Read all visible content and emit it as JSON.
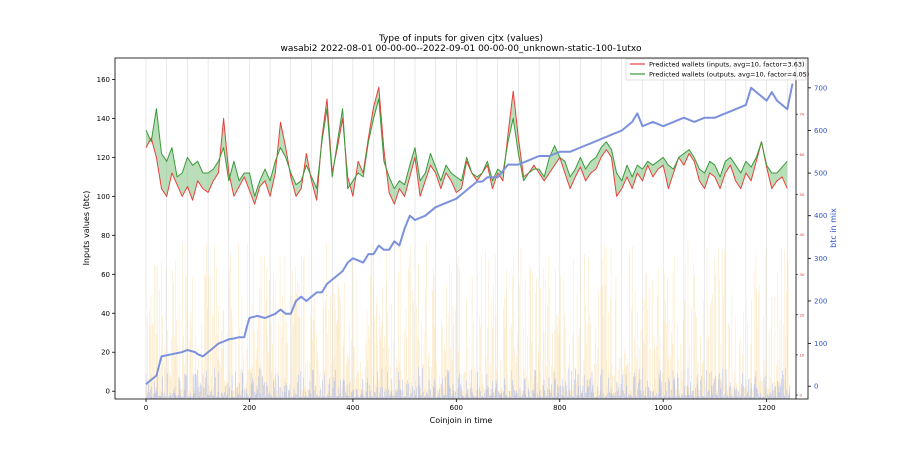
{
  "chart_data": {
    "type": "line",
    "title": "Type of inputs for given cjtx (values)",
    "subtitle": "wasabi2 2022-08-01 00-00-00--2022-09-01 00-00-00_unknown-static-100-1utxo",
    "xlabel": "Coinjoin in time",
    "ylabel": "Inputs values (btc)",
    "y2label": "btc in mix",
    "xlim": [
      -60,
      1280
    ],
    "ylim": [
      -4,
      171
    ],
    "y2lim": [
      -30,
      770
    ],
    "y3lim": [
      -1,
      84
    ],
    "x_ticks": [
      0,
      200,
      400,
      600,
      800,
      1000,
      1200
    ],
    "y_ticks": [
      0,
      20,
      40,
      60,
      80,
      100,
      120,
      140,
      160
    ],
    "y2_ticks": [
      0,
      100,
      200,
      300,
      400,
      500,
      600,
      700
    ],
    "y3_ticks": [
      0,
      10,
      20,
      30,
      40,
      50,
      60,
      70,
      80
    ],
    "legend_position": "top-right",
    "colors": {
      "inputs": "#e8413c",
      "outputs": "#3a9a3a",
      "fill": "#7fc27f",
      "mix": "#7b91dd",
      "right_axis": "#3355cc",
      "right_axis_inner": "#d43a2a",
      "bars_orange": "#f6c667",
      "bars_blue": "#8fa3ea",
      "grid": "#d6d6d6"
    },
    "legend": [
      {
        "label": "Predicted wallets (inputs, avg=10, factor=3.63)",
        "color": "#e8413c"
      },
      {
        "label": "Predicted wallets (outputs, avg=10, factor=4.05)",
        "color": "#3a9a3a"
      }
    ],
    "series_inputs": {
      "x": [
        0,
        10,
        20,
        30,
        40,
        50,
        60,
        70,
        80,
        90,
        100,
        110,
        120,
        130,
        140,
        150,
        160,
        170,
        180,
        190,
        200,
        210,
        220,
        230,
        240,
        250,
        260,
        270,
        280,
        290,
        300,
        310,
        320,
        330,
        340,
        350,
        360,
        370,
        380,
        390,
        400,
        410,
        420,
        430,
        440,
        450,
        460,
        470,
        480,
        490,
        500,
        510,
        520,
        530,
        540,
        550,
        560,
        570,
        580,
        590,
        600,
        610,
        620,
        630,
        640,
        650,
        660,
        670,
        680,
        690,
        700,
        710,
        720,
        730,
        740,
        750,
        760,
        770,
        780,
        790,
        800,
        810,
        820,
        830,
        840,
        850,
        860,
        870,
        880,
        890,
        900,
        910,
        920,
        930,
        940,
        950,
        960,
        970,
        980,
        990,
        1000,
        1010,
        1020,
        1030,
        1040,
        1050,
        1060,
        1070,
        1080,
        1090,
        1100,
        1110,
        1120,
        1130,
        1140,
        1150,
        1160,
        1170,
        1180,
        1190,
        1200,
        1210,
        1220,
        1230,
        1240
      ],
      "y": [
        125,
        130,
        120,
        104,
        100,
        112,
        106,
        100,
        105,
        98,
        108,
        104,
        102,
        108,
        112,
        140,
        112,
        100,
        105,
        110,
        103,
        96,
        105,
        108,
        100,
        112,
        138,
        125,
        110,
        100,
        104,
        122,
        108,
        98,
        130,
        150,
        112,
        125,
        140,
        110,
        100,
        118,
        112,
        130,
        146,
        156,
        124,
        102,
        96,
        104,
        100,
        110,
        120,
        100,
        108,
        116,
        112,
        104,
        112,
        108,
        102,
        104,
        118,
        112,
        108,
        112,
        116,
        104,
        112,
        108,
        132,
        154,
        130,
        110,
        112,
        116,
        112,
        108,
        112,
        116,
        120,
        112,
        104,
        110,
        115,
        108,
        112,
        114,
        120,
        124,
        120,
        100,
        104,
        110,
        104,
        112,
        108,
        116,
        110,
        114,
        116,
        104,
        112,
        120,
        116,
        122,
        118,
        108,
        104,
        112,
        110,
        104,
        112,
        116,
        108,
        104,
        112,
        108,
        118,
        128,
        115,
        104,
        108,
        110,
        104
      ]
    },
    "series_outputs": {
      "x": [
        0,
        10,
        20,
        30,
        40,
        50,
        60,
        70,
        80,
        90,
        100,
        110,
        120,
        130,
        140,
        150,
        160,
        170,
        180,
        190,
        200,
        210,
        220,
        230,
        240,
        250,
        260,
        270,
        280,
        290,
        300,
        310,
        320,
        330,
        340,
        350,
        360,
        370,
        380,
        390,
        400,
        410,
        420,
        430,
        440,
        450,
        460,
        470,
        480,
        490,
        500,
        510,
        520,
        530,
        540,
        550,
        560,
        570,
        580,
        590,
        600,
        610,
        620,
        630,
        640,
        650,
        660,
        670,
        680,
        690,
        700,
        710,
        720,
        730,
        740,
        750,
        760,
        770,
        780,
        790,
        800,
        810,
        820,
        830,
        840,
        850,
        860,
        870,
        880,
        890,
        900,
        910,
        920,
        930,
        940,
        950,
        960,
        970,
        980,
        990,
        1000,
        1010,
        1020,
        1030,
        1040,
        1050,
        1060,
        1070,
        1080,
        1090,
        1100,
        1110,
        1120,
        1130,
        1140,
        1150,
        1160,
        1170,
        1180,
        1190,
        1200,
        1210,
        1220,
        1230,
        1240
      ],
      "y": [
        134,
        128,
        145,
        122,
        118,
        125,
        110,
        112,
        120,
        116,
        118,
        112,
        112,
        114,
        118,
        125,
        108,
        118,
        108,
        112,
        112,
        100,
        108,
        114,
        108,
        118,
        125,
        120,
        112,
        106,
        108,
        116,
        110,
        104,
        128,
        145,
        110,
        128,
        145,
        104,
        108,
        112,
        110,
        128,
        140,
        150,
        118,
        110,
        104,
        108,
        106,
        116,
        125,
        108,
        112,
        122,
        115,
        108,
        116,
        112,
        110,
        108,
        120,
        112,
        110,
        112,
        118,
        108,
        114,
        112,
        128,
        140,
        122,
        108,
        112,
        114,
        114,
        110,
        120,
        126,
        120,
        118,
        110,
        114,
        120,
        114,
        118,
        120,
        125,
        128,
        124,
        112,
        108,
        116,
        110,
        116,
        114,
        118,
        116,
        118,
        120,
        116,
        114,
        120,
        122,
        124,
        120,
        114,
        112,
        118,
        116,
        110,
        118,
        120,
        116,
        112,
        118,
        115,
        120,
        128,
        116,
        112,
        112,
        115,
        118
      ]
    },
    "series_mix": {
      "label": "btc in mix",
      "x": [
        0,
        20,
        30,
        50,
        70,
        80,
        95,
        100,
        110,
        120,
        130,
        140,
        150,
        160,
        170,
        180,
        190,
        195,
        200,
        215,
        230,
        240,
        250,
        260,
        270,
        280,
        290,
        300,
        310,
        320,
        330,
        340,
        350,
        360,
        370,
        380,
        390,
        400,
        420,
        430,
        440,
        450,
        460,
        470,
        480,
        490,
        500,
        510,
        520,
        540,
        560,
        580,
        600,
        620,
        640,
        650,
        660,
        680,
        700,
        720,
        740,
        760,
        780,
        800,
        820,
        840,
        860,
        880,
        900,
        920,
        940,
        950,
        960,
        980,
        1000,
        1020,
        1040,
        1060,
        1080,
        1100,
        1120,
        1140,
        1160,
        1170,
        1180,
        1190,
        1200,
        1210,
        1220,
        1230,
        1240,
        1250
      ],
      "y": [
        5,
        25,
        70,
        75,
        80,
        85,
        80,
        75,
        70,
        80,
        90,
        100,
        105,
        110,
        112,
        115,
        115,
        140,
        160,
        165,
        160,
        165,
        170,
        180,
        170,
        170,
        200,
        210,
        200,
        210,
        220,
        220,
        240,
        250,
        260,
        270,
        290,
        300,
        290,
        310,
        310,
        330,
        320,
        320,
        340,
        330,
        370,
        400,
        390,
        400,
        420,
        430,
        440,
        460,
        480,
        480,
        490,
        490,
        520,
        520,
        530,
        540,
        540,
        550,
        550,
        560,
        570,
        580,
        590,
        600,
        620,
        640,
        610,
        620,
        610,
        620,
        630,
        620,
        630,
        630,
        640,
        650,
        660,
        700,
        690,
        680,
        670,
        690,
        670,
        660,
        650,
        710
      ]
    }
  }
}
